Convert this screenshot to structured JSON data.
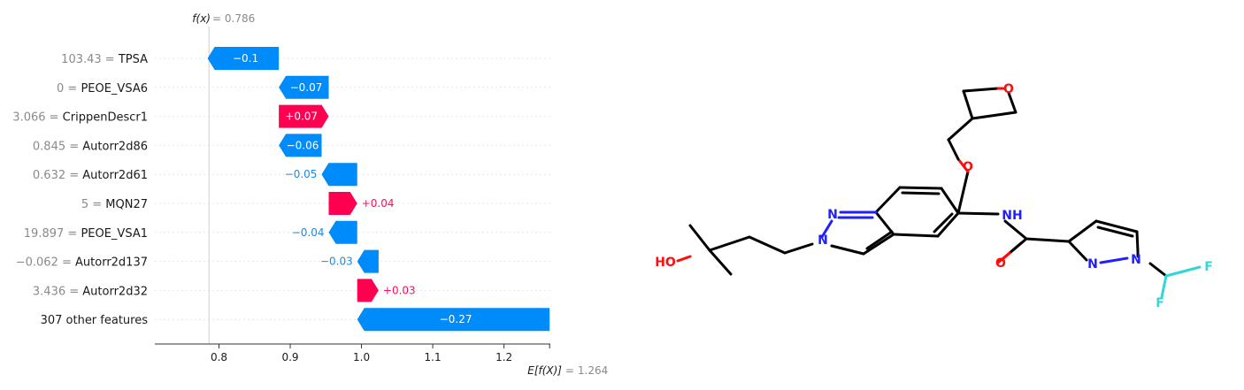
{
  "chart_data": {
    "type": "waterfall",
    "fx_label": "f(x)",
    "fx_value": "= 0.786",
    "ex_label": "E[f(X)]",
    "ex_value": "= 1.264",
    "base_value": 1.264,
    "final_value": 0.786,
    "xlim": [
      0.71,
      1.265
    ],
    "xticks": [
      0.8,
      0.9,
      1.0,
      1.1,
      1.2
    ],
    "xtick_labels": [
      "0.8",
      "0.9",
      "1.0",
      "1.1",
      "1.2"
    ],
    "colors": {
      "negative": "#008bfb",
      "positive": "#ff0051",
      "label_neg": "#1e88e5",
      "label_pos": "#ff0d57"
    },
    "features": [
      {
        "value_label": "103.43 =",
        "name": "TPSA",
        "contribution": -0.1,
        "label": "−0.1"
      },
      {
        "value_label": "0 =",
        "name": "PEOE_VSA6",
        "contribution": -0.07,
        "label": "−0.07"
      },
      {
        "value_label": "3.066 =",
        "name": "CrippenDescr1",
        "contribution": 0.07,
        "label": "+0.07"
      },
      {
        "value_label": "0.845 =",
        "name": "Autorr2d86",
        "contribution": -0.06,
        "label": "−0.06"
      },
      {
        "value_label": "0.632 =",
        "name": "Autorr2d61",
        "contribution": -0.05,
        "label": "−0.05"
      },
      {
        "value_label": "5 =",
        "name": "MQN27",
        "contribution": 0.04,
        "label": "+0.04"
      },
      {
        "value_label": "19.897 =",
        "name": "PEOE_VSA1",
        "contribution": -0.04,
        "label": "−0.04"
      },
      {
        "value_label": "−0.062 =",
        "name": "Autorr2d137",
        "contribution": -0.03,
        "label": "−0.03"
      },
      {
        "value_label": "3.436 =",
        "name": "Autorr2d32",
        "contribution": 0.03,
        "label": "+0.03"
      },
      {
        "value_label": "",
        "name": "307 other features",
        "contribution": -0.27,
        "label": "−0.27"
      }
    ]
  },
  "molecule": {
    "atom_labels": {
      "hydroxyl": "HO",
      "ether_o": "O",
      "oxetane_o": "O",
      "nh": "NH",
      "carbonyl_o": "O",
      "indazole_n1": "N",
      "indazole_n2": "N",
      "pyrazole_n1": "N",
      "pyrazole_n2": "N",
      "f1": "F",
      "f2": "F"
    },
    "colors": {
      "bond": "#000000",
      "oxygen": "#ff0d0d",
      "nitrogen": "#1f1fff",
      "fluorine": "#33d6d6"
    }
  }
}
